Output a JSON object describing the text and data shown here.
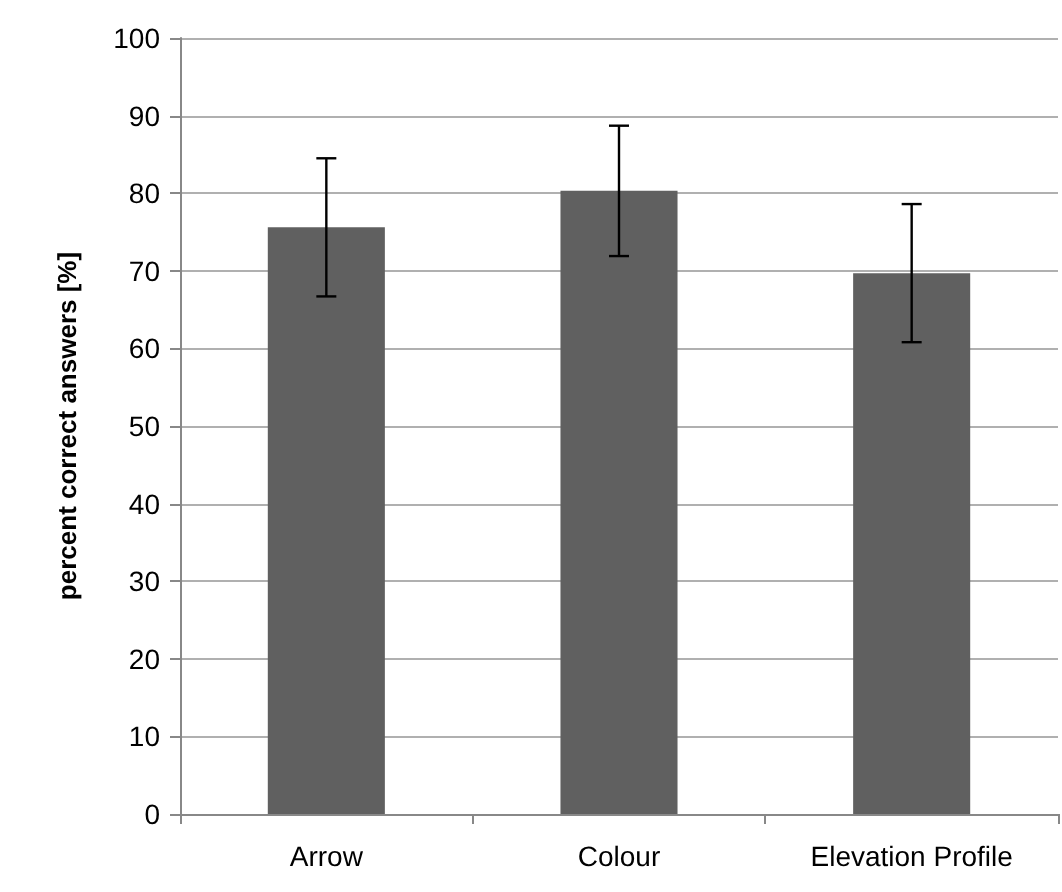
{
  "chart_data": {
    "type": "bar",
    "ylabel": "percent correct answers [%]",
    "categories": [
      "Arrow",
      "Colour",
      "Elevation Profile"
    ],
    "values": [
      75.6,
      80.3,
      69.7
    ],
    "errors": [
      8.9,
      8.4,
      8.9
    ],
    "color": "#606060",
    "ylim": [
      0,
      100
    ],
    "yticks": [
      0,
      10,
      20,
      30,
      40,
      50,
      60,
      70,
      80,
      90,
      100
    ],
    "grid": "y"
  }
}
